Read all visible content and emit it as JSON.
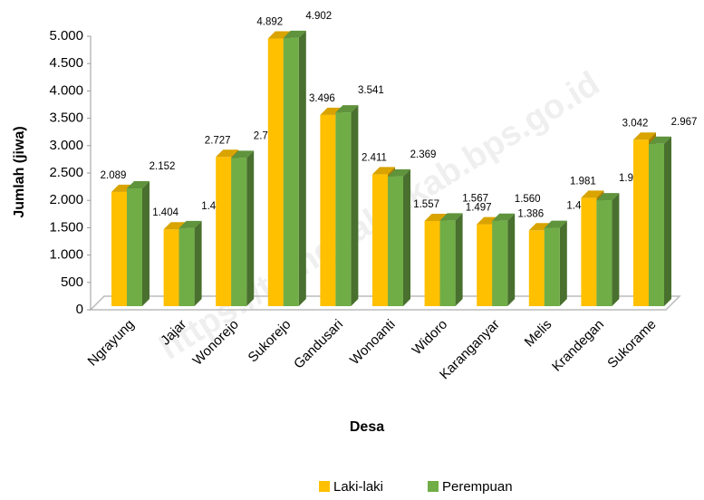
{
  "chart_data": {
    "type": "bar3d",
    "watermark": "https://trenggalekkab.bps.go.id",
    "x_label": "Desa",
    "y_label": "Jumlah (jiwa)",
    "categories": [
      "Ngrayung",
      "Jajar",
      "Wonorejo",
      "Sukorejo",
      "Gandusari",
      "Wonoanti",
      "Widoro",
      "Karanganyar",
      "Melis",
      "Krandegan",
      "Sukorame"
    ],
    "series": [
      {
        "name": "Laki-laki",
        "color": "#FFC000",
        "values": [
          2089,
          1404,
          2727,
          4892,
          3496,
          2411,
          1557,
          1497,
          1386,
          1981,
          3042
        ],
        "value_labels": [
          "2.089",
          "1.404",
          "2.727",
          "4.892",
          "3.496",
          "2.411",
          "1.557",
          "1.497",
          "1.386",
          "1.981",
          "3.042"
        ]
      },
      {
        "name": "Perempuan",
        "color": "#70AD47",
        "values": [
          2152,
          1426,
          2709,
          4902,
          3541,
          2369,
          1567,
          1560,
          1431,
          1936,
          2967
        ],
        "value_labels": [
          "2.152",
          "1.426",
          "2.709",
          "4.902",
          "3.541",
          "2.369",
          "1.567",
          "1.560",
          "1.431",
          "1.936",
          "2.967"
        ]
      }
    ],
    "ylim": [
      0,
      5000
    ],
    "yticks": [
      0,
      500,
      {
        "value": 1000,
        "label": "1.000"
      },
      {
        "value": 1500,
        "label": "1.500"
      },
      {
        "value": 2000,
        "label": "2.000"
      },
      {
        "value": 2500,
        "label": "2.500"
      },
      {
        "value": 3000,
        "label": "3.000"
      },
      {
        "value": 3500,
        "label": "3.500"
      },
      {
        "value": 4000,
        "label": "4.000"
      },
      {
        "value": 4500,
        "label": "4.500"
      },
      {
        "value": 5000,
        "label": "5.000"
      }
    ],
    "legend": "bottom"
  }
}
